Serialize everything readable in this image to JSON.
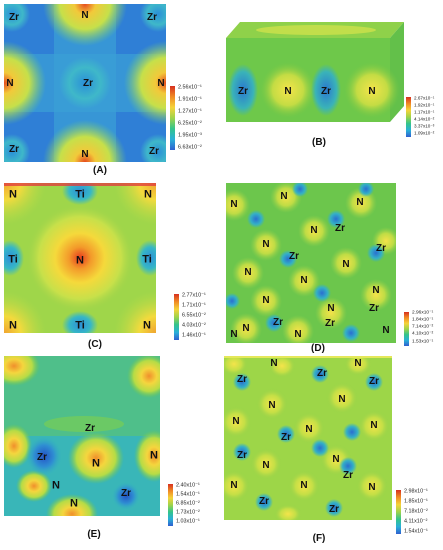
{
  "panels": {
    "A": {
      "label": "(A)",
      "atoms": [
        "Zr",
        "N",
        "Zr",
        "Zr",
        "N",
        "N",
        "Zr",
        "N",
        "Zr"
      ],
      "colorbar": [
        "2.56x10⁻¹",
        "1.91x10⁻¹",
        "1.27x10⁻¹",
        "6.25x10⁻²",
        "1.95x10⁻³",
        "6.63x10⁻²"
      ]
    },
    "B": {
      "label": "(B)",
      "atoms": [
        "Zr",
        "N",
        "Zr",
        "N"
      ],
      "colorbar": [
        "2.67x10⁻¹",
        "1.92x10⁻¹",
        "1.17x10⁻¹",
        "4.14x10⁻²",
        "3.37x10⁻³",
        "1.09x10⁻²"
      ]
    },
    "C": {
      "label": "(C)",
      "atoms": [
        "N",
        "Ti",
        "N",
        "Ti",
        "N",
        "Ti",
        "N",
        "Ti",
        "N"
      ],
      "colorbar": [
        "2.77x10⁻¹",
        "1.71x10⁻¹",
        "6.55x10⁻²",
        "4.03x10⁻²",
        "1.46x10⁻¹"
      ]
    },
    "D": {
      "label": "(D)",
      "atoms": [
        "N",
        "N",
        "N",
        "N",
        "Zr",
        "Zr",
        "Zr",
        "N",
        "N",
        "N",
        "N",
        "N",
        "Zr",
        "Zr",
        "N",
        "N",
        "Zr",
        "N",
        "N",
        "N",
        "N"
      ],
      "colorbar": [
        "2.96x10⁻¹",
        "1.84x10⁻¹",
        "7.14x10⁻²",
        "4.10x10⁻²",
        "1.53x10⁻¹"
      ]
    },
    "E": {
      "label": "(E)",
      "atoms": [
        "Zr",
        "Zr",
        "N",
        "N",
        "Zr",
        "N",
        "N"
      ],
      "colorbar": [
        "2.40x10⁻¹",
        "1.54x10⁻¹",
        "6.85x10⁻²",
        "1.73x10⁻²",
        "1.03x10⁻¹"
      ]
    },
    "F": {
      "label": "(F)",
      "atoms": [
        "N",
        "Zr",
        "N",
        "N",
        "Zr",
        "N",
        "Zr",
        "N",
        "N",
        "Zr",
        "N",
        "Zr",
        "N",
        "N",
        "Zr",
        "N",
        "Zr",
        "N",
        "Zr",
        "N"
      ],
      "colorbar": [
        "2.98x10⁻¹",
        "1.85x10⁻¹",
        "7.18x10⁻²",
        "4.11x10⁻²",
        "1.54x10⁻¹"
      ]
    }
  }
}
